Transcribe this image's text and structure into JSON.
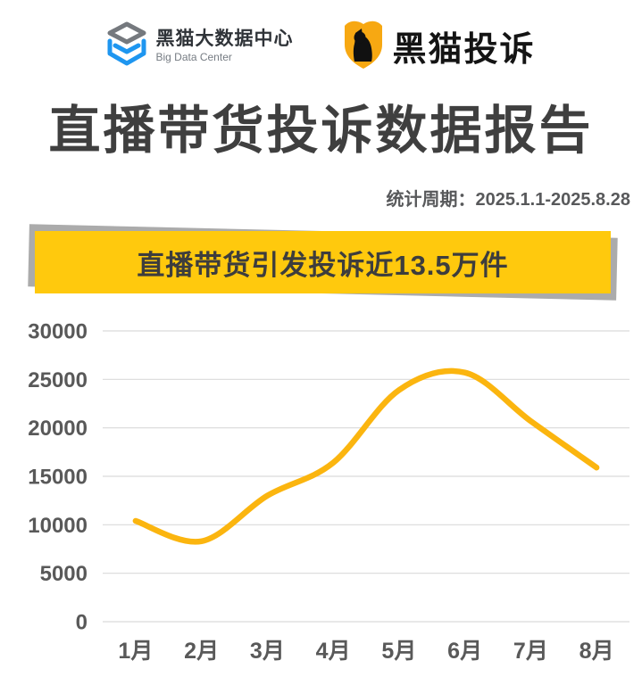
{
  "header": {
    "left_logo": {
      "icon": "layered-stack-icon",
      "line1": "黑猫大数据中心",
      "line2": "Big Data Center"
    },
    "right_logo": {
      "icon": "shield-cat-icon",
      "name": "黑猫投诉"
    }
  },
  "title": "直播带货投诉数据报告",
  "subtitle": "统计周期：2025.1.1-2025.8.28",
  "banner": {
    "text": "直播带货引发投诉近13.5万件"
  },
  "colors": {
    "banner_yellow": "#FFC90D",
    "banner_shadow_gray": "#ABABAB",
    "line_yellow": "#FBB50F",
    "gridline_gray": "#D9D9D9",
    "title_gray": "#3F3F3F",
    "axis_label_gray": "#595959",
    "shield_amber": "#F7A812",
    "stack_icon_gray": "#75797E",
    "stack_icon_blue": "#1E96F0"
  },
  "chart_data": {
    "type": "line",
    "categories": [
      "1月",
      "2月",
      "3月",
      "4月",
      "5月",
      "6月",
      "7月",
      "8月"
    ],
    "values": [
      10400,
      8300,
      13000,
      16400,
      23900,
      25700,
      20700,
      15900
    ],
    "title": "",
    "xlabel": "",
    "ylabel": "",
    "ylim": [
      0,
      30000
    ],
    "yticks": [
      0,
      5000,
      10000,
      15000,
      20000,
      25000,
      30000
    ],
    "grid": true,
    "legend": false,
    "smooth": true,
    "line_color": "#FBB50F",
    "line_width": 6.5
  }
}
